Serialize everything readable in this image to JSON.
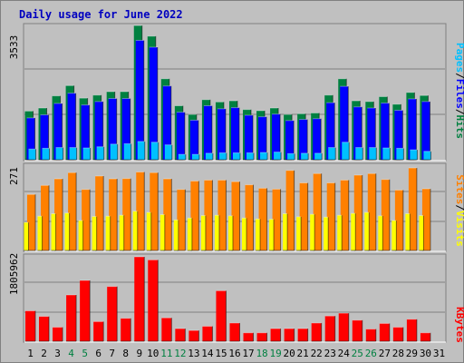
{
  "title": "Daily usage for June 2022",
  "colors": {
    "hits": "#008040",
    "files": "#0000ff",
    "pages": "#00c0ff",
    "visits": "#ffff00",
    "sites": "#ff8000",
    "kbytes": "#ff0000",
    "weekend_day": "#008040",
    "weekday": "#000000"
  },
  "chart_data": [
    {
      "type": "bar",
      "panel": "top",
      "max_label": "3533",
      "ylim": [
        0,
        3533
      ],
      "legend_text": {
        "pages": "Pages",
        "files": "Files",
        "hits": "Hits",
        "sep": "/"
      },
      "categories": [
        "1",
        "2",
        "3",
        "4",
        "5",
        "6",
        "7",
        "8",
        "9",
        "10",
        "11",
        "12",
        "13",
        "14",
        "15",
        "16",
        "17",
        "18",
        "19",
        "20",
        "21",
        "22",
        "23",
        "24",
        "25",
        "26",
        "27",
        "28",
        "29",
        "30",
        "31"
      ],
      "series": [
        {
          "name": "Hits",
          "values": [
            1280,
            1360,
            1680,
            1950,
            1620,
            1700,
            1790,
            1790,
            3530,
            3250,
            2130,
            1420,
            1190,
            1580,
            1520,
            1550,
            1320,
            1290,
            1360,
            1190,
            1210,
            1230,
            1700,
            2130,
            1550,
            1530,
            1660,
            1460,
            1770,
            1690,
            0
          ]
        },
        {
          "name": "Files",
          "values": [
            1100,
            1180,
            1480,
            1750,
            1440,
            1530,
            1610,
            1610,
            3140,
            2960,
            1940,
            1250,
            1040,
            1420,
            1340,
            1370,
            1170,
            1130,
            1200,
            1030,
            1060,
            1080,
            1500,
            1930,
            1390,
            1360,
            1490,
            1300,
            1600,
            1530,
            0
          ]
        },
        {
          "name": "Pages",
          "values": [
            280,
            300,
            320,
            320,
            310,
            340,
            410,
            420,
            480,
            460,
            390,
            140,
            140,
            170,
            180,
            180,
            180,
            190,
            200,
            160,
            170,
            170,
            320,
            460,
            320,
            320,
            310,
            300,
            260,
            220,
            0
          ]
        }
      ]
    },
    {
      "type": "bar",
      "panel": "middle",
      "max_label": "271",
      "ylim": [
        0,
        271
      ],
      "legend_text": {
        "sites": "Sites",
        "visits": "Visits",
        "sep": "/"
      },
      "categories": [
        "1",
        "2",
        "3",
        "4",
        "5",
        "6",
        "7",
        "8",
        "9",
        "10",
        "11",
        "12",
        "13",
        "14",
        "15",
        "16",
        "17",
        "18",
        "19",
        "20",
        "21",
        "22",
        "23",
        "24",
        "25",
        "26",
        "27",
        "28",
        "29",
        "30",
        "31"
      ],
      "series": [
        {
          "name": "Sites",
          "values": [
            180,
            209,
            230,
            250,
            196,
            239,
            230,
            231,
            252,
            250,
            230,
            196,
            223,
            226,
            226,
            221,
            211,
            200,
            197,
            257,
            217,
            247,
            217,
            226,
            242,
            247,
            228,
            194,
            265,
            198,
            0
          ]
        },
        {
          "name": "Visits",
          "values": [
            90,
            110,
            118,
            120,
            96,
            109,
            110,
            113,
            126,
            122,
            115,
            98,
            104,
            112,
            113,
            111,
            104,
            101,
            100,
            118,
            108,
            116,
            107,
            113,
            119,
            122,
            111,
            96,
            118,
            112,
            0
          ]
        }
      ]
    },
    {
      "type": "bar",
      "panel": "bottom",
      "max_label": "1805962",
      "ylim": [
        0,
        1805962
      ],
      "legend_text": {
        "kbytes": "KBytes"
      },
      "categories": [
        "1",
        "2",
        "3",
        "4",
        "5",
        "6",
        "7",
        "8",
        "9",
        "10",
        "11",
        "12",
        "13",
        "14",
        "15",
        "16",
        "17",
        "18",
        "19",
        "20",
        "21",
        "22",
        "23",
        "24",
        "25",
        "26",
        "27",
        "28",
        "29",
        "30",
        "31"
      ],
      "series": [
        {
          "name": "KBytes",
          "values": [
            650,
            530,
            300,
            990,
            1300,
            420,
            1170,
            490,
            1805,
            1740,
            500,
            270,
            230,
            320,
            1080,
            390,
            180,
            180,
            270,
            270,
            270,
            390,
            540,
            600,
            450,
            260,
            380,
            300,
            470,
            180,
            0
          ]
        }
      ]
    }
  ],
  "x_axis": {
    "labels": [
      "1",
      "2",
      "3",
      "4",
      "5",
      "6",
      "7",
      "8",
      "9",
      "10",
      "11",
      "12",
      "13",
      "14",
      "15",
      "16",
      "17",
      "18",
      "19",
      "20",
      "21",
      "22",
      "23",
      "24",
      "25",
      "26",
      "27",
      "28",
      "29",
      "30",
      "31"
    ],
    "weekend_days": [
      "4",
      "5",
      "11",
      "12",
      "18",
      "19",
      "25",
      "26"
    ]
  }
}
